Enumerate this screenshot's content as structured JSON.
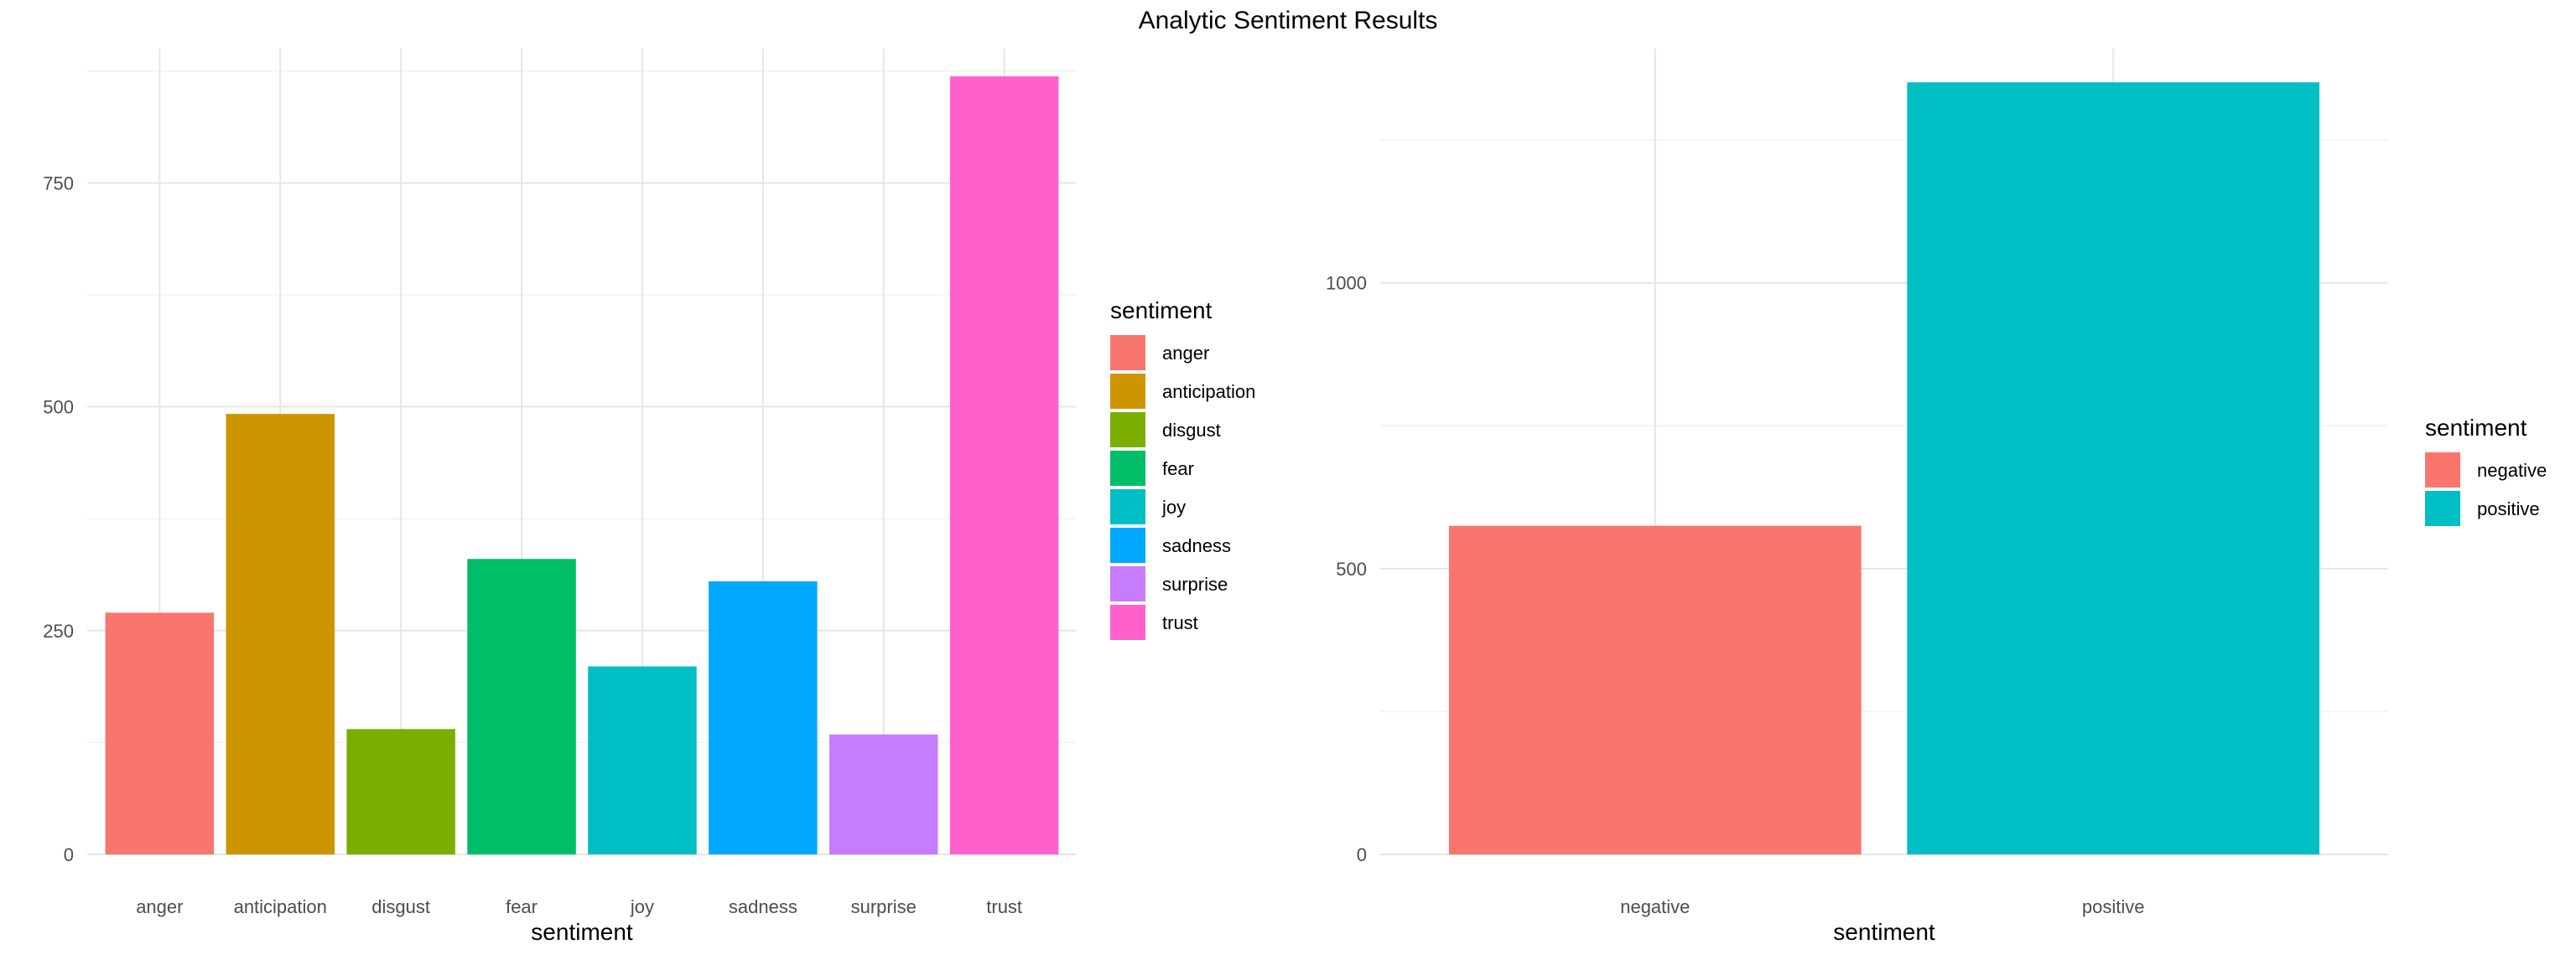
{
  "title": "Analytic Sentiment Results",
  "chart_data": [
    {
      "type": "bar",
      "categories": [
        "anger",
        "anticipation",
        "disgust",
        "fear",
        "joy",
        "sadness",
        "surprise",
        "trust"
      ],
      "values": [
        270,
        492,
        140,
        330,
        210,
        305,
        134,
        869
      ],
      "colors": [
        "#F8766D",
        "#CD9600",
        "#7CAE00",
        "#00BE67",
        "#00BFC4",
        "#00A9FF",
        "#C77CFF",
        "#FF61CC"
      ],
      "xlabel": "sentiment",
      "ylabel": "",
      "ylim": [
        0,
        900
      ],
      "yticks": [
        0,
        250,
        500,
        750
      ],
      "minor_yticks": [
        125,
        375,
        625,
        875
      ],
      "grid": true,
      "legend": {
        "title": "sentiment",
        "position": "right",
        "entries": [
          "anger",
          "anticipation",
          "disgust",
          "fear",
          "joy",
          "sadness",
          "surprise",
          "trust"
        ]
      }
    },
    {
      "type": "bar",
      "categories": [
        "negative",
        "positive"
      ],
      "values": [
        575,
        1351
      ],
      "colors": [
        "#F8766D",
        "#00BFC4"
      ],
      "xlabel": "sentiment",
      "ylabel": "",
      "ylim": [
        0,
        1410
      ],
      "yticks": [
        0,
        500,
        1000
      ],
      "minor_yticks": [
        250,
        750,
        1250
      ],
      "grid": true,
      "legend": {
        "title": "sentiment",
        "position": "right",
        "entries": [
          "negative",
          "positive"
        ]
      }
    }
  ]
}
